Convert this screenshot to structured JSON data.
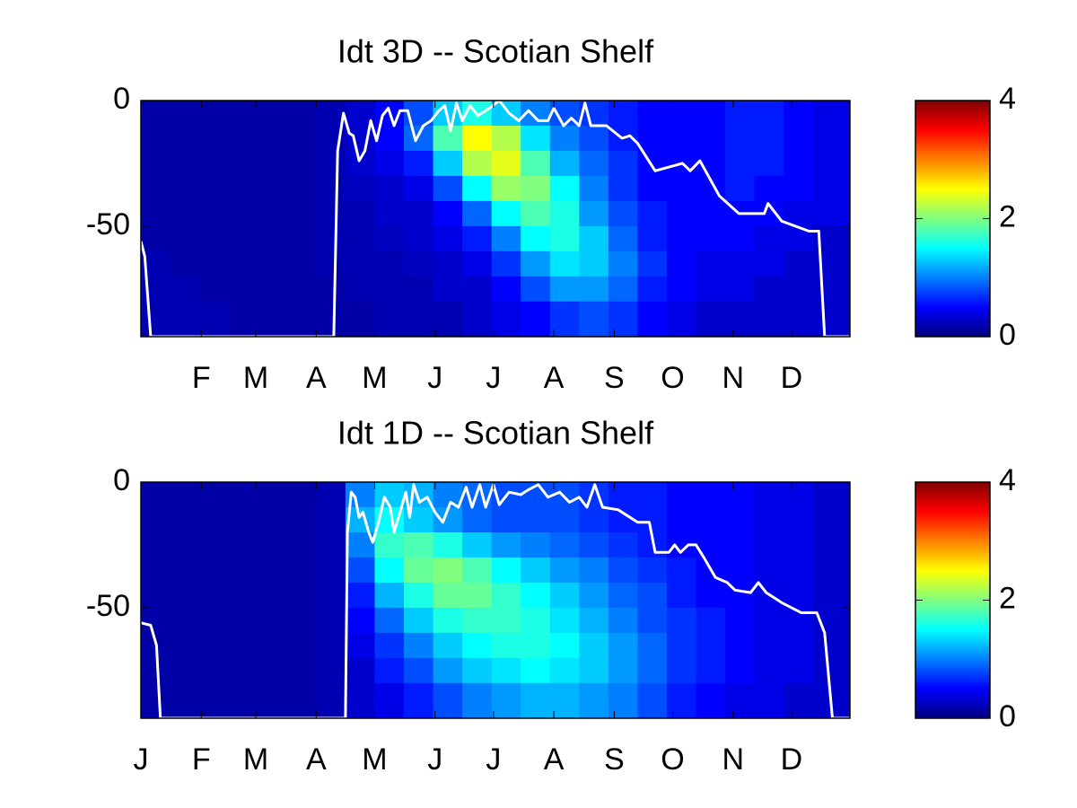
{
  "chart_data": [
    {
      "type": "heatmap",
      "title": "Idt 3D   -- Scotian Shelf",
      "xlim": [
        1,
        365
      ],
      "xticks": [
        {
          "value": 32,
          "label": "F"
        },
        {
          "value": 60,
          "label": "M"
        },
        {
          "value": 91,
          "label": "A"
        },
        {
          "value": 121,
          "label": "M"
        },
        {
          "value": 152,
          "label": "J"
        },
        {
          "value": 182,
          "label": "J"
        },
        {
          "value": 213,
          "label": "A"
        },
        {
          "value": 244,
          "label": "S"
        },
        {
          "value": 274,
          "label": "O"
        },
        {
          "value": 305,
          "label": "N"
        },
        {
          "value": 335,
          "label": "D"
        }
      ],
      "ylim": [
        -94,
        0
      ],
      "yticks": [
        0,
        -50
      ],
      "xbins": [
        1,
        16,
        31,
        46,
        61,
        76,
        91,
        106,
        121,
        136,
        151,
        166,
        181,
        196,
        211,
        226,
        241,
        256,
        271,
        286,
        301,
        316,
        331,
        346,
        361,
        365
      ],
      "ybins": [
        0,
        -10,
        -20,
        -30,
        -40,
        -50,
        -60,
        -70,
        -80,
        -94
      ],
      "z": [
        [
          0.15,
          0.15,
          0.15,
          0.15,
          0.15,
          0.15,
          0.2,
          0.3,
          0.5,
          0.8,
          1.3,
          1.6,
          1.3,
          1.0,
          0.8,
          0.7,
          0.6,
          0.5,
          0.5,
          0.5,
          0.6,
          0.6,
          0.5,
          0.4,
          0.4
        ],
        [
          0.15,
          0.15,
          0.15,
          0.15,
          0.15,
          0.15,
          0.2,
          0.3,
          0.5,
          0.9,
          1.8,
          2.5,
          2.2,
          1.4,
          1.0,
          0.8,
          0.6,
          0.5,
          0.5,
          0.5,
          0.6,
          0.6,
          0.5,
          0.4,
          0.4
        ],
        [
          0.15,
          0.15,
          0.15,
          0.15,
          0.15,
          0.15,
          0.2,
          0.3,
          0.4,
          0.6,
          1.3,
          2.2,
          2.4,
          1.8,
          1.2,
          0.9,
          0.7,
          0.5,
          0.5,
          0.5,
          0.6,
          0.6,
          0.5,
          0.4,
          0.4
        ],
        [
          0.15,
          0.15,
          0.15,
          0.15,
          0.15,
          0.15,
          0.2,
          0.25,
          0.3,
          0.4,
          0.8,
          1.5,
          2.1,
          2.0,
          1.5,
          1.0,
          0.7,
          0.5,
          0.5,
          0.5,
          0.6,
          0.5,
          0.5,
          0.4,
          0.4
        ],
        [
          0.15,
          0.15,
          0.15,
          0.15,
          0.15,
          0.15,
          0.2,
          0.2,
          0.3,
          0.3,
          0.5,
          0.9,
          1.5,
          1.8,
          1.6,
          1.1,
          0.8,
          0.6,
          0.5,
          0.5,
          0.5,
          0.5,
          0.4,
          0.4,
          0.4
        ],
        [
          0.15,
          0.15,
          0.15,
          0.15,
          0.15,
          0.15,
          0.2,
          0.2,
          0.25,
          0.3,
          0.4,
          0.6,
          1.0,
          1.5,
          1.6,
          1.3,
          0.9,
          0.6,
          0.5,
          0.5,
          0.5,
          0.4,
          0.4,
          0.3,
          0.3
        ],
        [
          0.2,
          0.15,
          0.15,
          0.15,
          0.15,
          0.15,
          0.2,
          0.2,
          0.2,
          0.25,
          0.3,
          0.4,
          0.7,
          1.1,
          1.4,
          1.3,
          1.0,
          0.7,
          0.5,
          0.4,
          0.4,
          0.4,
          0.3,
          0.3,
          0.3
        ],
        [
          0.2,
          0.2,
          0.15,
          0.15,
          0.15,
          0.15,
          0.15,
          0.2,
          0.2,
          0.2,
          0.3,
          0.3,
          0.5,
          0.8,
          1.1,
          1.1,
          0.9,
          0.6,
          0.5,
          0.4,
          0.4,
          0.3,
          0.3,
          0.3,
          0.3
        ],
        [
          0.2,
          0.2,
          0.2,
          0.15,
          0.15,
          0.15,
          0.15,
          0.15,
          0.2,
          0.2,
          0.2,
          0.3,
          0.4,
          0.5,
          0.7,
          0.8,
          0.7,
          0.5,
          0.4,
          0.3,
          0.3,
          0.3,
          0.3,
          0.3,
          0.3
        ]
      ],
      "colormap": "jet",
      "clim": [
        0,
        4
      ],
      "cticks": [
        0,
        2,
        4
      ],
      "series": [
        {
          "color": "#ffffff",
          "x": [
            1,
            3,
            6,
            100,
            102,
            105,
            108,
            110,
            113,
            116,
            119,
            122,
            125,
            128,
            131,
            134,
            138,
            142,
            146,
            150,
            154,
            157,
            160,
            163,
            166,
            170,
            174,
            180,
            185,
            190,
            195,
            200,
            205,
            210,
            213,
            218,
            222,
            226,
            229,
            232,
            240,
            248,
            252,
            256,
            265,
            279,
            283,
            288,
            298,
            308,
            321,
            323,
            330,
            344,
            349,
            352,
            365
          ],
          "values": [
            -56,
            -62,
            -94,
            -94,
            -20,
            -5,
            -13,
            -14,
            -24,
            -20,
            -8,
            -16,
            -6,
            -3,
            -10,
            -4,
            -4,
            -16,
            -10,
            -8,
            -4,
            -2,
            -12,
            -1,
            -8,
            -2,
            -6,
            -3,
            0,
            -5,
            -8,
            -4,
            -8,
            -8,
            -3,
            -10,
            -7,
            -10,
            -1,
            -10,
            -10,
            -15,
            -14,
            -17,
            -28,
            -25,
            -28,
            -24,
            -38,
            -45,
            -45,
            -41,
            -48,
            -52,
            -52,
            -94,
            -94
          ]
        }
      ]
    },
    {
      "type": "heatmap",
      "title": "Idt 1D   -- Scotian Shelf",
      "xlim": [
        1,
        365
      ],
      "xticks": [
        {
          "value": 1,
          "label": "J"
        },
        {
          "value": 32,
          "label": "F"
        },
        {
          "value": 60,
          "label": "M"
        },
        {
          "value": 91,
          "label": "A"
        },
        {
          "value": 121,
          "label": "M"
        },
        {
          "value": 152,
          "label": "J"
        },
        {
          "value": 182,
          "label": "J"
        },
        {
          "value": 213,
          "label": "A"
        },
        {
          "value": 244,
          "label": "S"
        },
        {
          "value": 274,
          "label": "O"
        },
        {
          "value": 305,
          "label": "N"
        },
        {
          "value": 335,
          "label": "D"
        }
      ],
      "ylim": [
        -94,
        0
      ],
      "yticks": [
        0,
        -50
      ],
      "xbins": [
        1,
        16,
        31,
        46,
        61,
        76,
        91,
        106,
        121,
        136,
        151,
        166,
        181,
        196,
        211,
        226,
        241,
        256,
        271,
        286,
        301,
        316,
        331,
        346,
        361,
        365
      ],
      "ybins": [
        0,
        -10,
        -20,
        -30,
        -40,
        -50,
        -60,
        -70,
        -80,
        -94
      ],
      "z": [
        [
          0.15,
          0.15,
          0.15,
          0.15,
          0.15,
          0.15,
          0.2,
          1.0,
          1.3,
          1.2,
          1.0,
          0.9,
          0.8,
          0.8,
          0.8,
          0.7,
          0.6,
          0.6,
          0.5,
          0.5,
          0.5,
          0.4,
          0.4,
          0.3,
          0.3
        ],
        [
          0.15,
          0.15,
          0.15,
          0.15,
          0.15,
          0.15,
          0.2,
          1.2,
          1.5,
          1.3,
          1.1,
          0.9,
          0.8,
          0.8,
          0.8,
          0.7,
          0.6,
          0.6,
          0.5,
          0.5,
          0.5,
          0.4,
          0.4,
          0.3,
          0.3
        ],
        [
          0.15,
          0.15,
          0.15,
          0.15,
          0.15,
          0.15,
          0.2,
          1.0,
          1.7,
          1.8,
          1.6,
          1.3,
          1.1,
          1.0,
          0.9,
          0.8,
          0.7,
          0.6,
          0.5,
          0.5,
          0.5,
          0.4,
          0.4,
          0.3,
          0.3
        ],
        [
          0.15,
          0.15,
          0.15,
          0.15,
          0.15,
          0.15,
          0.2,
          0.8,
          1.5,
          1.9,
          2.0,
          1.8,
          1.5,
          1.3,
          1.1,
          1.0,
          0.8,
          0.7,
          0.6,
          0.5,
          0.5,
          0.4,
          0.4,
          0.3,
          0.3
        ],
        [
          0.15,
          0.15,
          0.15,
          0.15,
          0.15,
          0.15,
          0.2,
          0.6,
          1.2,
          1.6,
          1.9,
          1.9,
          1.7,
          1.5,
          1.3,
          1.1,
          0.9,
          0.8,
          0.6,
          0.5,
          0.5,
          0.4,
          0.4,
          0.3,
          0.3
        ],
        [
          0.15,
          0.15,
          0.15,
          0.15,
          0.15,
          0.15,
          0.2,
          0.5,
          0.9,
          1.3,
          1.6,
          1.7,
          1.7,
          1.6,
          1.4,
          1.2,
          1.0,
          0.8,
          0.7,
          0.6,
          0.5,
          0.4,
          0.4,
          0.3,
          0.3
        ],
        [
          0.15,
          0.15,
          0.15,
          0.15,
          0.15,
          0.15,
          0.2,
          0.4,
          0.7,
          1.0,
          1.3,
          1.5,
          1.6,
          1.6,
          1.5,
          1.3,
          1.1,
          0.9,
          0.7,
          0.6,
          0.5,
          0.4,
          0.4,
          0.3,
          0.3
        ],
        [
          0.15,
          0.15,
          0.15,
          0.15,
          0.15,
          0.15,
          0.2,
          0.3,
          0.6,
          0.8,
          1.1,
          1.3,
          1.4,
          1.5,
          1.4,
          1.3,
          1.1,
          0.9,
          0.7,
          0.6,
          0.5,
          0.4,
          0.4,
          0.3,
          0.3
        ],
        [
          0.15,
          0.15,
          0.15,
          0.15,
          0.15,
          0.15,
          0.2,
          0.3,
          0.4,
          0.6,
          0.8,
          1.0,
          1.1,
          1.2,
          1.2,
          1.1,
          1.0,
          0.8,
          0.6,
          0.5,
          0.4,
          0.4,
          0.3,
          0.3,
          0.3
        ]
      ],
      "colormap": "jet",
      "clim": [
        0,
        4
      ],
      "cticks": [
        0,
        2,
        4
      ],
      "series": [
        {
          "color": "#ffffff",
          "x": [
            1,
            6,
            9,
            11,
            106,
            107,
            109,
            111,
            113,
            115,
            118,
            120,
            123,
            126,
            129,
            131,
            134,
            137,
            139,
            141,
            144,
            148,
            152,
            156,
            160,
            164,
            168,
            171,
            175,
            178,
            182,
            185,
            190,
            196,
            200,
            205,
            210,
            216,
            221,
            226,
            230,
            234,
            238,
            246,
            252,
            256,
            262,
            265,
            272,
            275,
            278,
            282,
            286,
            290,
            296,
            302,
            306,
            314,
            318,
            322,
            330,
            340,
            348,
            352,
            356,
            365
          ],
          "values": [
            -56,
            -57,
            -65,
            -94,
            -94,
            -20,
            -4,
            -6,
            -14,
            -12,
            -20,
            -24,
            -16,
            -6,
            -10,
            -20,
            -12,
            -4,
            -14,
            -1,
            -8,
            -6,
            -12,
            -16,
            -8,
            -10,
            -2,
            -10,
            -1,
            -10,
            -1,
            -9,
            -4,
            -5,
            -3,
            -1,
            -6,
            -4,
            -8,
            -6,
            -10,
            -1,
            -10,
            -11,
            -14,
            -16,
            -16,
            -28,
            -28,
            -25,
            -28,
            -25,
            -25,
            -30,
            -38,
            -40,
            -43,
            -44,
            -40,
            -44,
            -48,
            -52,
            -52,
            -60,
            -94,
            -94
          ]
        }
      ]
    }
  ]
}
